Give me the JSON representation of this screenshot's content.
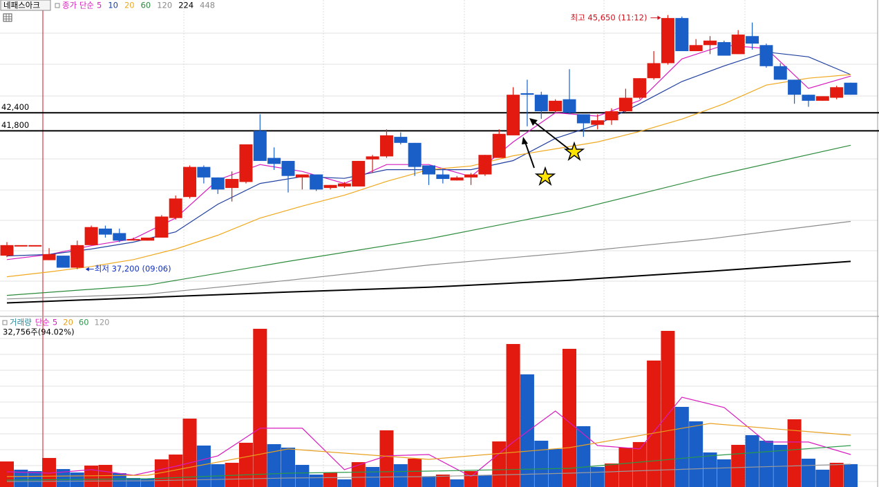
{
  "chart_data": [
    {
      "type": "candlestick",
      "title": "네패스아크",
      "legend_prefix": "종가 단순",
      "ylim": [
        35700,
        46150
      ],
      "up_color": "#e31a0f",
      "down_color": "#1a5fc8",
      "open": [
        37650,
        38000,
        38000,
        37500,
        37650,
        37250,
        38000,
        38550,
        38400,
        38200,
        38150,
        38250,
        38900,
        39600,
        40600,
        40250,
        39900,
        40100,
        41800,
        40900,
        40800,
        40250,
        40350,
        39900,
        39950,
        39950,
        40850,
        40950,
        41600,
        41400,
        40650,
        40350,
        40150,
        40250,
        40350,
        40900,
        41650,
        43050,
        43000,
        42450,
        42850,
        42350,
        42000,
        42150,
        42450,
        42900,
        43550,
        44050,
        45550,
        44450,
        44650,
        44750,
        44350,
        44950,
        44650,
        43950,
        43500,
        43000,
        42800,
        42900,
        43400
      ],
      "high": [
        38100,
        38000,
        38000,
        37900,
        37650,
        38150,
        38650,
        38650,
        38550,
        38250,
        38250,
        39000,
        39650,
        40650,
        40650,
        40250,
        40450,
        41350,
        42350,
        41250,
        40800,
        40350,
        40350,
        40000,
        40100,
        40800,
        41000,
        41850,
        41750,
        41400,
        40650,
        40550,
        40300,
        40400,
        41000,
        41850,
        43250,
        43500,
        43100,
        42850,
        43850,
        42350,
        42350,
        42550,
        43200,
        43550,
        44450,
        45650,
        45600,
        44850,
        44950,
        44800,
        45150,
        45400,
        44700,
        44050,
        43500,
        43000,
        42950,
        43300,
        43400
      ],
      "low": [
        37600,
        38000,
        38000,
        37500,
        37250,
        37200,
        38000,
        38250,
        38100,
        38150,
        38150,
        38250,
        38850,
        39550,
        40050,
        39700,
        39450,
        40050,
        40800,
        40500,
        39750,
        39850,
        39800,
        39850,
        39900,
        39950,
        40400,
        40900,
        41350,
        40300,
        40000,
        40050,
        40150,
        40000,
        40300,
        40900,
        41650,
        41950,
        42200,
        42400,
        42350,
        41600,
        41850,
        42000,
        42400,
        42850,
        43500,
        44000,
        44450,
        44450,
        44350,
        44300,
        44350,
        44500,
        43900,
        43500,
        42700,
        42600,
        42800,
        42850,
        43000
      ],
      "close": [
        38000,
        38000,
        38000,
        37700,
        37250,
        38000,
        38600,
        38350,
        38150,
        38200,
        38250,
        38950,
        39550,
        40600,
        40250,
        39850,
        40200,
        41350,
        40800,
        40700,
        40300,
        40350,
        39850,
        40000,
        40050,
        40800,
        40950,
        41650,
        41400,
        40600,
        40350,
        40200,
        40250,
        40350,
        41000,
        41700,
        43000,
        43000,
        42450,
        42800,
        42400,
        42050,
        42150,
        42450,
        42900,
        43550,
        44050,
        45550,
        44450,
        44650,
        44800,
        44300,
        45000,
        44700,
        43950,
        43500,
        43000,
        42800,
        42950,
        43250,
        43000
      ],
      "moving_averages": [
        {
          "name": "5",
          "color": "#d81cbf",
          "x": [
            0,
            3,
            6,
            9,
            12,
            15,
            18,
            21,
            24,
            27,
            30,
            33,
            36,
            39,
            42,
            45,
            48,
            51,
            54,
            57,
            60
          ],
          "values": [
            37520,
            37690,
            37980,
            38210,
            38900,
            40170,
            40680,
            40450,
            40050,
            40680,
            40680,
            40280,
            41430,
            42400,
            42290,
            42810,
            44190,
            44650,
            44540,
            43210,
            43620
          ]
        },
        {
          "name": "10",
          "color": "#1f3fa0",
          "x": [
            0,
            3,
            6,
            9,
            12,
            15,
            18,
            21,
            24,
            27,
            30,
            33,
            36,
            39,
            42,
            45,
            48,
            51,
            54,
            57,
            60
          ],
          "values": [
            37640,
            37690,
            37870,
            38100,
            38440,
            39360,
            40050,
            40280,
            40220,
            40510,
            40510,
            40510,
            40810,
            41550,
            42010,
            42700,
            43440,
            43960,
            44420,
            44260,
            43670
          ]
        },
        {
          "name": "20",
          "color": "#f0a81c",
          "x": [
            0,
            3,
            6,
            9,
            12,
            15,
            18,
            21,
            24,
            27,
            30,
            33,
            36,
            39,
            42,
            45,
            48,
            51,
            54,
            57,
            60
          ],
          "values": [
            36950,
            37110,
            37290,
            37520,
            37870,
            38330,
            38900,
            39300,
            39660,
            40120,
            40510,
            40630,
            40970,
            41200,
            41430,
            41780,
            42190,
            42700,
            43320,
            43550,
            43670
          ]
        },
        {
          "name": "60",
          "color": "#2a8a3a",
          "x": [
            0,
            10,
            20,
            30,
            40,
            50,
            60
          ],
          "values": [
            36330,
            36670,
            37460,
            38210,
            39130,
            40280,
            41320
          ]
        },
        {
          "name": "120",
          "color": "#8a8a8a",
          "x": [
            0,
            10,
            20,
            30,
            40,
            50,
            60
          ],
          "values": [
            36210,
            36370,
            36830,
            37340,
            37750,
            38210,
            38790
          ]
        },
        {
          "name": "224",
          "color": "#000000",
          "x": [
            0,
            10,
            20,
            30,
            40,
            50,
            60
          ],
          "values": [
            36080,
            36260,
            36440,
            36600,
            36830,
            37130,
            37460
          ]
        },
        {
          "name": "448",
          "color": "#8a8a8a"
        }
      ],
      "levels": [
        {
          "value": 42400,
          "label": "42,400"
        },
        {
          "value": 41800,
          "label": "41,800"
        }
      ],
      "annotations": [
        {
          "text": "최고 45,650 (11:12)",
          "value": 45650,
          "index": 47,
          "color": "#d0101a",
          "side": "left"
        },
        {
          "text": "최저 37,200 (09:06)",
          "value": 37200,
          "index": 5,
          "color": "#1030c0",
          "side": "right"
        }
      ]
    },
    {
      "type": "bar",
      "title": "거래량",
      "title_color": "#2a8a9a",
      "legend_prefix": "단순",
      "readout": "32,756주(94.02%)",
      "ylim": [
        0,
        242500
      ],
      "values": [
        36600,
        24800,
        22800,
        41600,
        25700,
        20800,
        30700,
        31700,
        19800,
        12900,
        11900,
        39600,
        46500,
        98000,
        59400,
        32700,
        34700,
        63400,
        226700,
        61400,
        56400,
        31700,
        17800,
        20800,
        10900,
        35600,
        28700,
        81200,
        32700,
        40600,
        14900,
        17800,
        10900,
        22800,
        16800,
        65300,
        204900,
        161400,
        66300,
        54500,
        198000,
        87100,
        28700,
        33700,
        56400,
        64400,
        181200,
        223700,
        114800,
        94100,
        49500,
        39600,
        60400,
        74300,
        66300,
        60400,
        97000,
        40600,
        24800,
        34700,
        32756
      ],
      "colors": [
        "#e31a0f",
        "#1a5fc8",
        "#1a5fc8",
        "#e31a0f",
        "#1a5fc8",
        "#1a5fc8",
        "#e31a0f",
        "#e31a0f",
        "#1a5fc8",
        "#1a5fc8",
        "#1a5fc8",
        "#e31a0f",
        "#e31a0f",
        "#e31a0f",
        "#1a5fc8",
        "#1a5fc8",
        "#e31a0f",
        "#e31a0f",
        "#e31a0f",
        "#1a5fc8",
        "#1a5fc8",
        "#1a5fc8",
        "#1a5fc8",
        "#e31a0f",
        "#1a5fc8",
        "#e31a0f",
        "#1a5fc8",
        "#e31a0f",
        "#1a5fc8",
        "#e31a0f",
        "#1a5fc8",
        "#e31a0f",
        "#1a5fc8",
        "#e31a0f",
        "#1a5fc8",
        "#e31a0f",
        "#e31a0f",
        "#1a5fc8",
        "#1a5fc8",
        "#1a5fc8",
        "#e31a0f",
        "#1a5fc8",
        "#1a5fc8",
        "#e31a0f",
        "#e31a0f",
        "#e31a0f",
        "#e31a0f",
        "#e31a0f",
        "#1a5fc8",
        "#1a5fc8",
        "#1a5fc8",
        "#1a5fc8",
        "#e31a0f",
        "#1a5fc8",
        "#1a5fc8",
        "#1a5fc8",
        "#e31a0f",
        "#1a5fc8",
        "#1a5fc8",
        "#e31a0f",
        "#1a5fc8"
      ],
      "moving_averages": [
        {
          "name": "5",
          "color": "#d81cbf",
          "x": [
            0,
            3,
            6,
            9,
            12,
            15,
            18,
            21,
            24,
            27,
            30,
            33,
            36,
            39,
            42,
            45,
            48,
            51,
            54,
            57,
            60
          ],
          "values": [
            21800,
            19800,
            24800,
            16800,
            29700,
            44600,
            84200,
            84200,
            24800,
            44600,
            46500,
            14900,
            64400,
            108900,
            59400,
            54500,
            128700,
            113900,
            64400,
            64400,
            46500
          ]
        },
        {
          "name": "20",
          "color": "#e8a020",
          "x": [
            0,
            10,
            20,
            30,
            40,
            50,
            60
          ],
          "values": [
            14900,
            16800,
            54500,
            39600,
            56400,
            91100,
            74300
          ]
        },
        {
          "name": "60",
          "color": "#2a9a4a",
          "x": [
            0,
            10,
            20,
            30,
            40,
            50,
            60
          ],
          "values": [
            9900,
            11900,
            19800,
            22800,
            26700,
            44600,
            59400
          ]
        },
        {
          "name": "120",
          "color": "#9a9a9a",
          "x": [
            0,
            10,
            20,
            30,
            40,
            50,
            60
          ],
          "values": [
            7900,
            8900,
            12900,
            14900,
            19800,
            26700,
            32700
          ]
        }
      ]
    }
  ]
}
